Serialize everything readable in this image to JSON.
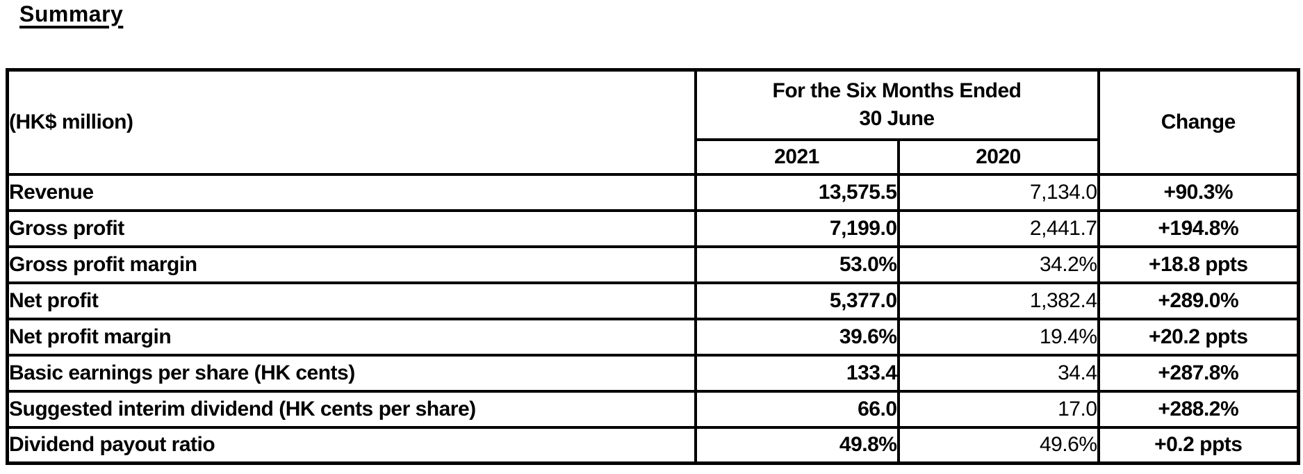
{
  "page": {
    "title": "Summary"
  },
  "table": {
    "corner_label": "(HK$ million)",
    "period_header_line1": "For the Six Months Ended",
    "period_header_line2": "30 June",
    "year_2021": "2021",
    "year_2020": "2020",
    "change_header": "Change",
    "rows": [
      {
        "label": "Revenue",
        "y2021": "13,575.5",
        "y2020": "7,134.0",
        "change": "+90.3%"
      },
      {
        "label": "Gross profit",
        "y2021": "7,199.0",
        "y2020": "2,441.7",
        "change": "+194.8%"
      },
      {
        "label": "Gross profit margin",
        "y2021": "53.0%",
        "y2020": "34.2%",
        "change": "+18.8 ppts"
      },
      {
        "label": "Net profit",
        "y2021": "5,377.0",
        "y2020": "1,382.4",
        "change": "+289.0%"
      },
      {
        "label": "Net profit margin",
        "y2021": "39.6%",
        "y2020": "19.4%",
        "change": "+20.2 ppts"
      },
      {
        "label": "Basic earnings per share (HK cents)",
        "y2021": "133.4",
        "y2020": "34.4",
        "change": "+287.8%"
      },
      {
        "label": "Suggested interim dividend (HK cents per share)",
        "y2021": "66.0",
        "y2020": "17.0",
        "change": "+288.2%"
      },
      {
        "label": "Dividend payout ratio",
        "y2021": "49.8%",
        "y2020": "49.6%",
        "change": "+0.2 ppts"
      }
    ]
  }
}
